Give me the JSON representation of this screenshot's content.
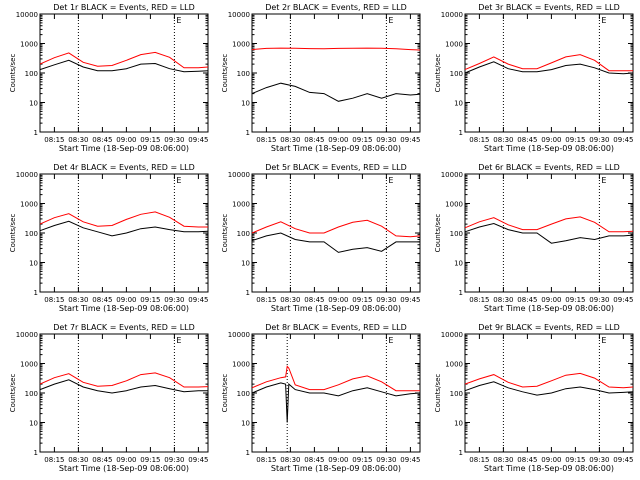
{
  "figure": {
    "background": "#ffffff",
    "ylabel": "Counts/sec",
    "xlabel": "Start Time (18-Sep-09 08:06:00)",
    "xticks": [
      "08:15",
      "08:30",
      "08:45",
      "09:00",
      "09:15",
      "09:30",
      "09:45"
    ],
    "yticks": [
      "1",
      "10",
      "100",
      "1000",
      "10000"
    ],
    "colors": {
      "events": "#000000",
      "lld": "#ff0000",
      "axes": "#000000",
      "dotted_line": "#000000"
    }
  },
  "chart_data": [
    {
      "type": "line",
      "title": "Det 1r BLACK = Events, RED = LLD",
      "xlabel": "Start Time (18-Sep-09 08:06:00)",
      "ylabel": "Counts/sec",
      "y_scale": "log",
      "ylim": [
        1,
        10000
      ],
      "x": [
        "08:06",
        "08:15",
        "08:24",
        "08:33",
        "08:42",
        "08:51",
        "09:00",
        "09:09",
        "09:18",
        "09:27",
        "09:36",
        "09:45",
        "09:51"
      ],
      "series": [
        {
          "name": "LLD",
          "color": "#ff0000",
          "values": [
            200,
            330,
            480,
            230,
            170,
            180,
            270,
            420,
            500,
            340,
            150,
            150,
            160
          ]
        },
        {
          "name": "Events",
          "color": "#000000",
          "values": [
            130,
            190,
            270,
            160,
            120,
            120,
            140,
            200,
            210,
            140,
            110,
            115,
            120
          ]
        }
      ],
      "markers": {
        "dotted_lines": [
          "08:30",
          "09:30"
        ],
        "label": "E"
      }
    },
    {
      "type": "line",
      "title": "Det 2r BLACK = Events, RED = LLD",
      "xlabel": "Start Time (18-Sep-09 08:06:00)",
      "ylabel": "Counts/sec",
      "y_scale": "log",
      "ylim": [
        1,
        10000
      ],
      "x": [
        "08:06",
        "08:15",
        "08:24",
        "08:33",
        "08:42",
        "08:51",
        "09:00",
        "09:09",
        "09:18",
        "09:27",
        "09:36",
        "09:45",
        "09:51"
      ],
      "series": [
        {
          "name": "LLD",
          "color": "#ff0000",
          "values": [
            620,
            680,
            700,
            690,
            670,
            660,
            680,
            690,
            700,
            690,
            660,
            620,
            600
          ]
        },
        {
          "name": "Events",
          "color": "#000000",
          "values": [
            20,
            32,
            45,
            35,
            22,
            20,
            11,
            14,
            20,
            14,
            20,
            18,
            19
          ]
        }
      ],
      "markers": {
        "dotted_lines": [
          "08:30",
          "09:30"
        ],
        "label": "E"
      }
    },
    {
      "type": "line",
      "title": "Det 3r BLACK = Events, RED = LLD",
      "xlabel": "Start Time (18-Sep-09 08:06:00)",
      "ylabel": "Counts/sec",
      "y_scale": "log",
      "ylim": [
        1,
        10000
      ],
      "x": [
        "08:06",
        "08:15",
        "08:24",
        "08:33",
        "08:42",
        "08:51",
        "09:00",
        "09:09",
        "09:18",
        "09:27",
        "09:36",
        "09:45",
        "09:51"
      ],
      "series": [
        {
          "name": "LLD",
          "color": "#ff0000",
          "values": [
            130,
            210,
            350,
            200,
            140,
            140,
            220,
            350,
            420,
            270,
            120,
            120,
            120
          ]
        },
        {
          "name": "Events",
          "color": "#000000",
          "values": [
            100,
            160,
            240,
            140,
            110,
            110,
            130,
            180,
            200,
            150,
            100,
            95,
            100
          ]
        }
      ],
      "markers": {
        "dotted_lines": [
          "08:30",
          "09:30"
        ],
        "label": "E"
      }
    },
    {
      "type": "line",
      "title": "Det 4r BLACK = Events, RED = LLD",
      "xlabel": "Start Time (18-Sep-09 08:06:00)",
      "ylabel": "Counts/sec",
      "y_scale": "log",
      "ylim": [
        1,
        10000
      ],
      "x": [
        "08:06",
        "08:15",
        "08:24",
        "08:33",
        "08:42",
        "08:51",
        "09:00",
        "09:09",
        "09:18",
        "09:27",
        "09:36",
        "09:45",
        "09:51"
      ],
      "series": [
        {
          "name": "LLD",
          "color": "#ff0000",
          "values": [
            200,
            330,
            450,
            240,
            170,
            180,
            290,
            430,
            520,
            340,
            170,
            160,
            160
          ]
        },
        {
          "name": "Events",
          "color": "#000000",
          "values": [
            120,
            180,
            250,
            150,
            110,
            80,
            100,
            140,
            160,
            130,
            110,
            110,
            115
          ]
        }
      ],
      "markers": {
        "dotted_lines": [
          "08:30",
          "09:30"
        ],
        "label": "E"
      }
    },
    {
      "type": "line",
      "title": "Det 5r BLACK = Events, RED = LLD",
      "xlabel": "Start Time (18-Sep-09 08:06:00)",
      "ylabel": "Counts/sec",
      "y_scale": "log",
      "ylim": [
        1,
        10000
      ],
      "x": [
        "08:06",
        "08:15",
        "08:24",
        "08:33",
        "08:42",
        "08:51",
        "09:00",
        "09:09",
        "09:18",
        "09:27",
        "09:36",
        "09:45",
        "09:51"
      ],
      "series": [
        {
          "name": "LLD",
          "color": "#ff0000",
          "values": [
            100,
            160,
            240,
            140,
            100,
            100,
            160,
            230,
            270,
            170,
            80,
            75,
            80
          ]
        },
        {
          "name": "Events",
          "color": "#000000",
          "values": [
            55,
            80,
            100,
            60,
            50,
            50,
            22,
            28,
            32,
            24,
            50,
            50,
            50
          ]
        }
      ],
      "markers": {
        "dotted_lines": [
          "08:30",
          "09:30"
        ],
        "label": "E"
      }
    },
    {
      "type": "line",
      "title": "Det 6r BLACK = Events, RED = LLD",
      "xlabel": "Start Time (18-Sep-09 08:06:00)",
      "ylabel": "Counts/sec",
      "y_scale": "log",
      "ylim": [
        1,
        10000
      ],
      "x": [
        "08:06",
        "08:15",
        "08:24",
        "08:33",
        "08:42",
        "08:51",
        "09:00",
        "09:09",
        "09:18",
        "09:27",
        "09:36",
        "09:45",
        "09:51"
      ],
      "series": [
        {
          "name": "LLD",
          "color": "#ff0000",
          "values": [
            150,
            240,
            330,
            190,
            130,
            130,
            200,
            300,
            350,
            230,
            110,
            110,
            115
          ]
        },
        {
          "name": "Events",
          "color": "#000000",
          "values": [
            110,
            160,
            210,
            130,
            100,
            100,
            45,
            55,
            70,
            60,
            80,
            80,
            85
          ]
        }
      ],
      "markers": {
        "dotted_lines": [
          "08:30",
          "09:30"
        ],
        "label": "E"
      }
    },
    {
      "type": "line",
      "title": "Det 7r BLACK = Events, RED = LLD",
      "xlabel": "Start Time (18-Sep-09 08:06:00)",
      "ylabel": "Counts/sec",
      "y_scale": "log",
      "ylim": [
        1,
        10000
      ],
      "x": [
        "08:06",
        "08:15",
        "08:24",
        "08:33",
        "08:42",
        "08:51",
        "09:00",
        "09:09",
        "09:18",
        "09:27",
        "09:36",
        "09:45",
        "09:51"
      ],
      "series": [
        {
          "name": "LLD",
          "color": "#ff0000",
          "values": [
            200,
            330,
            450,
            230,
            170,
            180,
            260,
            420,
            480,
            330,
            160,
            160,
            165
          ]
        },
        {
          "name": "Events",
          "color": "#000000",
          "values": [
            130,
            200,
            280,
            160,
            120,
            100,
            120,
            160,
            180,
            140,
            110,
            120,
            120
          ]
        }
      ],
      "markers": {
        "dotted_lines": [
          "08:30",
          "09:30"
        ],
        "label": "E"
      }
    },
    {
      "type": "line",
      "title": "Det 8r BLACK = Events, RED = LLD",
      "xlabel": "Start Time (18-Sep-09 08:06:00)",
      "ylabel": "Counts/sec",
      "y_scale": "log",
      "ylim": [
        1,
        10000
      ],
      "x": [
        "08:06",
        "08:15",
        "08:24",
        "08:27",
        "08:28",
        "08:29",
        "08:33",
        "08:42",
        "08:51",
        "09:00",
        "09:09",
        "09:18",
        "09:27",
        "09:36",
        "09:45",
        "09:51"
      ],
      "series": [
        {
          "name": "LLD",
          "color": "#ff0000",
          "values": [
            150,
            240,
            330,
            350,
            800,
            700,
            190,
            130,
            130,
            190,
            300,
            380,
            240,
            120,
            120,
            120
          ]
        },
        {
          "name": "Events",
          "color": "#000000",
          "values": [
            100,
            160,
            220,
            200,
            10,
            200,
            130,
            100,
            100,
            80,
            120,
            150,
            110,
            80,
            95,
            100
          ]
        }
      ],
      "markers": {
        "dotted_lines": [
          "08:28",
          "09:30"
        ],
        "label": "E"
      }
    },
    {
      "type": "line",
      "title": "Det 9r BLACK = Events, RED = LLD",
      "xlabel": "Start Time (18-Sep-09 08:06:00)",
      "ylabel": "Counts/sec",
      "y_scale": "log",
      "ylim": [
        1,
        10000
      ],
      "x": [
        "08:06",
        "08:15",
        "08:24",
        "08:33",
        "08:42",
        "08:51",
        "09:00",
        "09:09",
        "09:18",
        "09:27",
        "09:36",
        "09:45",
        "09:51"
      ],
      "series": [
        {
          "name": "LLD",
          "color": "#ff0000",
          "values": [
            200,
            300,
            420,
            230,
            160,
            170,
            260,
            400,
            460,
            320,
            160,
            150,
            160
          ]
        },
        {
          "name": "Events",
          "color": "#000000",
          "values": [
            120,
            180,
            240,
            150,
            110,
            85,
            100,
            140,
            160,
            130,
            100,
            105,
            110
          ]
        }
      ],
      "markers": {
        "dotted_lines": [
          "08:30",
          "09:30"
        ],
        "label": "E"
      }
    }
  ]
}
